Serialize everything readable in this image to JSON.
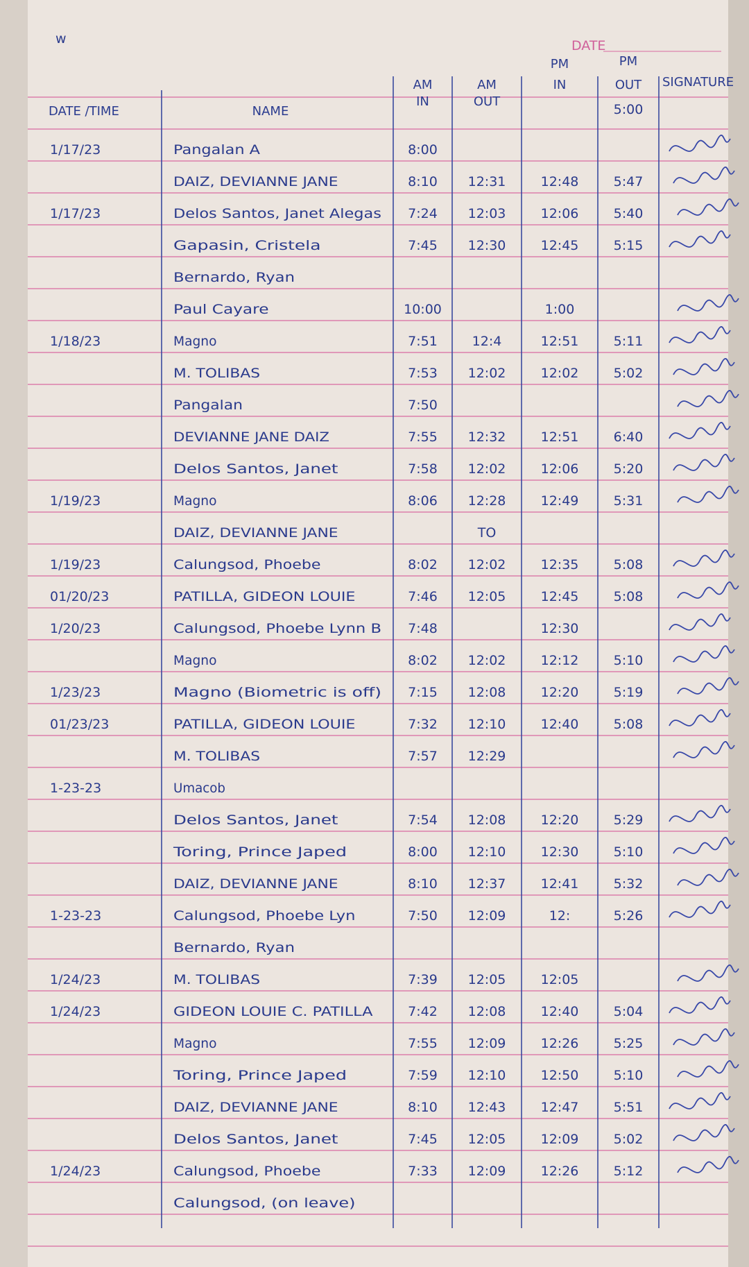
{
  "header": {
    "corner_mark": "w",
    "date_label": "DATE"
  },
  "table": {
    "group_headers": {
      "am": "AM",
      "pm": "PM"
    },
    "columns": {
      "date": "DATE /TIME",
      "name": "NAME",
      "am_in": "IN",
      "am_out": "OUT",
      "pm_in": "IN",
      "pm_out": "OUT",
      "signature": "SIGNATURE"
    },
    "standard_out": "5:00",
    "rows": [
      {
        "date": "1/17/23",
        "name": "Pangalan A",
        "am_in": "8:00"
      },
      {
        "name": "DAIZ, DEVIANNE JANE",
        "am_in": "8:10",
        "am_out": "12:31",
        "pm_in": "12:48",
        "pm_out": "5:47"
      },
      {
        "date": "1/17/23",
        "name": "Delos Santos, Janet Alegas",
        "am_in": "7:24",
        "am_out": "12:03",
        "pm_in": "12:06",
        "pm_out": "5:40"
      },
      {
        "name": "Gapasin, Cristela",
        "am_in": "7:45",
        "am_out": "12:30",
        "pm_in": "12:45",
        "pm_out": "5:15"
      },
      {
        "name": "Bernardo, Ryan"
      },
      {
        "name": "Paul Cayare",
        "am_in": "10:00",
        "pm_in": "1:00"
      },
      {
        "date": "1/18/23",
        "name": "Magno",
        "am_in": "7:51",
        "am_out": "12:4",
        "pm_in": "12:51",
        "pm_out": "5:11"
      },
      {
        "name": "M. TOLIBAS",
        "am_in": "7:53",
        "am_out": "12:02",
        "pm_in": "12:02",
        "pm_out": "5:02"
      },
      {
        "name": "Pangalan",
        "am_in": "7:50"
      },
      {
        "name": "DEVIANNE JANE DAIZ",
        "am_in": "7:55",
        "am_out": "12:32",
        "pm_in": "12:51",
        "pm_out": "6:40"
      },
      {
        "name": "Delos Santos, Janet",
        "am_in": "7:58",
        "am_out": "12:02",
        "pm_in": "12:06",
        "pm_out": "5:20"
      },
      {
        "date": "1/19/23",
        "name": "Magno",
        "am_in": "8:06",
        "am_out": "12:28",
        "pm_in": "12:49",
        "pm_out": "5:31"
      },
      {
        "name": "DAIZ, DEVIANNE JANE",
        "am_out": "TO"
      },
      {
        "date": "1/19/23",
        "name": "Calungsod, Phoebe",
        "am_in": "8:02",
        "am_out": "12:02",
        "pm_in": "12:35",
        "pm_out": "5:08"
      },
      {
        "date": "01/20/23",
        "name": "PATILLA, GIDEON LOUIE",
        "am_in": "7:46",
        "am_out": "12:05",
        "pm_in": "12:45",
        "pm_out": "5:08"
      },
      {
        "date": "1/20/23",
        "name": "Calungsod, Phoebe Lynn B",
        "am_in": "7:48",
        "pm_in": "12:30"
      },
      {
        "name": "Magno",
        "am_in": "8:02",
        "am_out": "12:02",
        "pm_in": "12:12",
        "pm_out": "5:10"
      },
      {
        "date": "1/23/23",
        "name": "Magno (Biometric is off)",
        "am_in": "7:15",
        "am_out": "12:08",
        "pm_in": "12:20",
        "pm_out": "5:19"
      },
      {
        "date": "01/23/23",
        "name": "PATILLA, GIDEON LOUIE",
        "am_in": "7:32",
        "am_out": "12:10",
        "pm_in": "12:40",
        "pm_out": "5:08"
      },
      {
        "name": "M. TOLIBAS",
        "am_in": "7:57",
        "am_out": "12:29"
      },
      {
        "date": "1-23-23",
        "name": "Umacob"
      },
      {
        "name": "Delos Santos, Janet",
        "am_in": "7:54",
        "am_out": "12:08",
        "pm_in": "12:20",
        "pm_out": "5:29"
      },
      {
        "name": "Toring, Prince Japed",
        "am_in": "8:00",
        "am_out": "12:10",
        "pm_in": "12:30",
        "pm_out": "5:10"
      },
      {
        "name": "DAIZ, DEVIANNE JANE",
        "am_in": "8:10",
        "am_out": "12:37",
        "pm_in": "12:41",
        "pm_out": "5:32"
      },
      {
        "date": "1-23-23",
        "name": "Calungsod, Phoebe Lyn",
        "am_in": "7:50",
        "am_out": "12:09",
        "pm_in": "12:",
        "pm_out": "5:26"
      },
      {
        "name": "Bernardo, Ryan"
      },
      {
        "date": "1/24/23",
        "name": "M. TOLIBAS",
        "am_in": "7:39",
        "am_out": "12:05",
        "pm_in": "12:05"
      },
      {
        "date": "1/24/23",
        "name": "GIDEON LOUIE C. PATILLA",
        "am_in": "7:42",
        "am_out": "12:08",
        "pm_in": "12:40",
        "pm_out": "5:04"
      },
      {
        "name": "Magno",
        "am_in": "7:55",
        "am_out": "12:09",
        "pm_in": "12:26",
        "pm_out": "5:25"
      },
      {
        "name": "Toring, Prince Japed",
        "am_in": "7:59",
        "am_out": "12:10",
        "pm_in": "12:50",
        "pm_out": "5:10"
      },
      {
        "name": "DAIZ, DEVIANNE JANE",
        "am_in": "8:10",
        "am_out": "12:43",
        "pm_in": "12:47",
        "pm_out": "5:51"
      },
      {
        "name": "Delos Santos, Janet",
        "am_in": "7:45",
        "am_out": "12:05",
        "pm_in": "12:09",
        "pm_out": "5:02"
      },
      {
        "date": "1/24/23",
        "name": "Calungsod, Phoebe",
        "am_in": "7:33",
        "am_out": "12:09",
        "pm_in": "12:26",
        "pm_out": "5:12"
      },
      {
        "name": "Calungsod, (on leave)"
      }
    ]
  }
}
